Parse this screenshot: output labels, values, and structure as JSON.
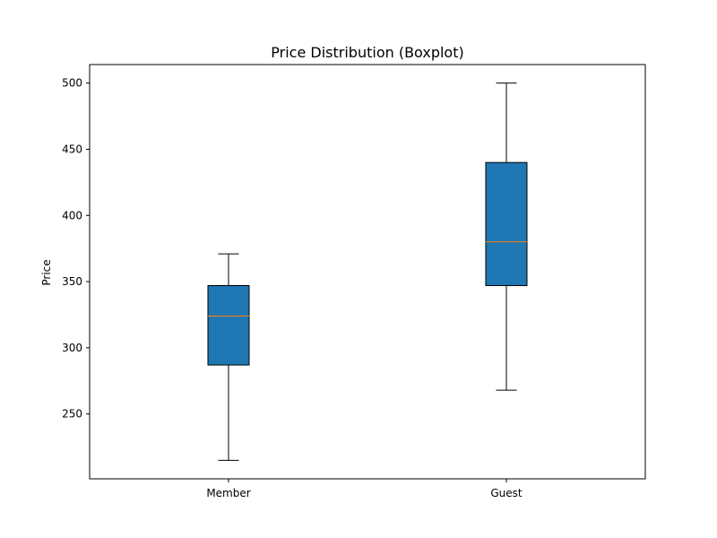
{
  "chart_data": {
    "type": "boxplot",
    "title": "Price Distribution (Boxplot)",
    "xlabel": "",
    "ylabel": "Price",
    "categories": [
      "Member",
      "Guest"
    ],
    "boxes": [
      {
        "category": "Member",
        "whisker_low": 215,
        "q1": 287,
        "median": 324,
        "q3": 347,
        "whisker_high": 371
      },
      {
        "category": "Guest",
        "whisker_low": 268,
        "q1": 347,
        "median": 380,
        "q3": 440,
        "whisker_high": 500
      }
    ],
    "yticks": [
      250,
      300,
      350,
      400,
      450,
      500
    ],
    "ylim": [
      201,
      514
    ],
    "grid": false,
    "legend": "none",
    "colors": {
      "box_fill": "#1f77b4",
      "median": "#ff7f0e",
      "edge": "#000000"
    }
  }
}
